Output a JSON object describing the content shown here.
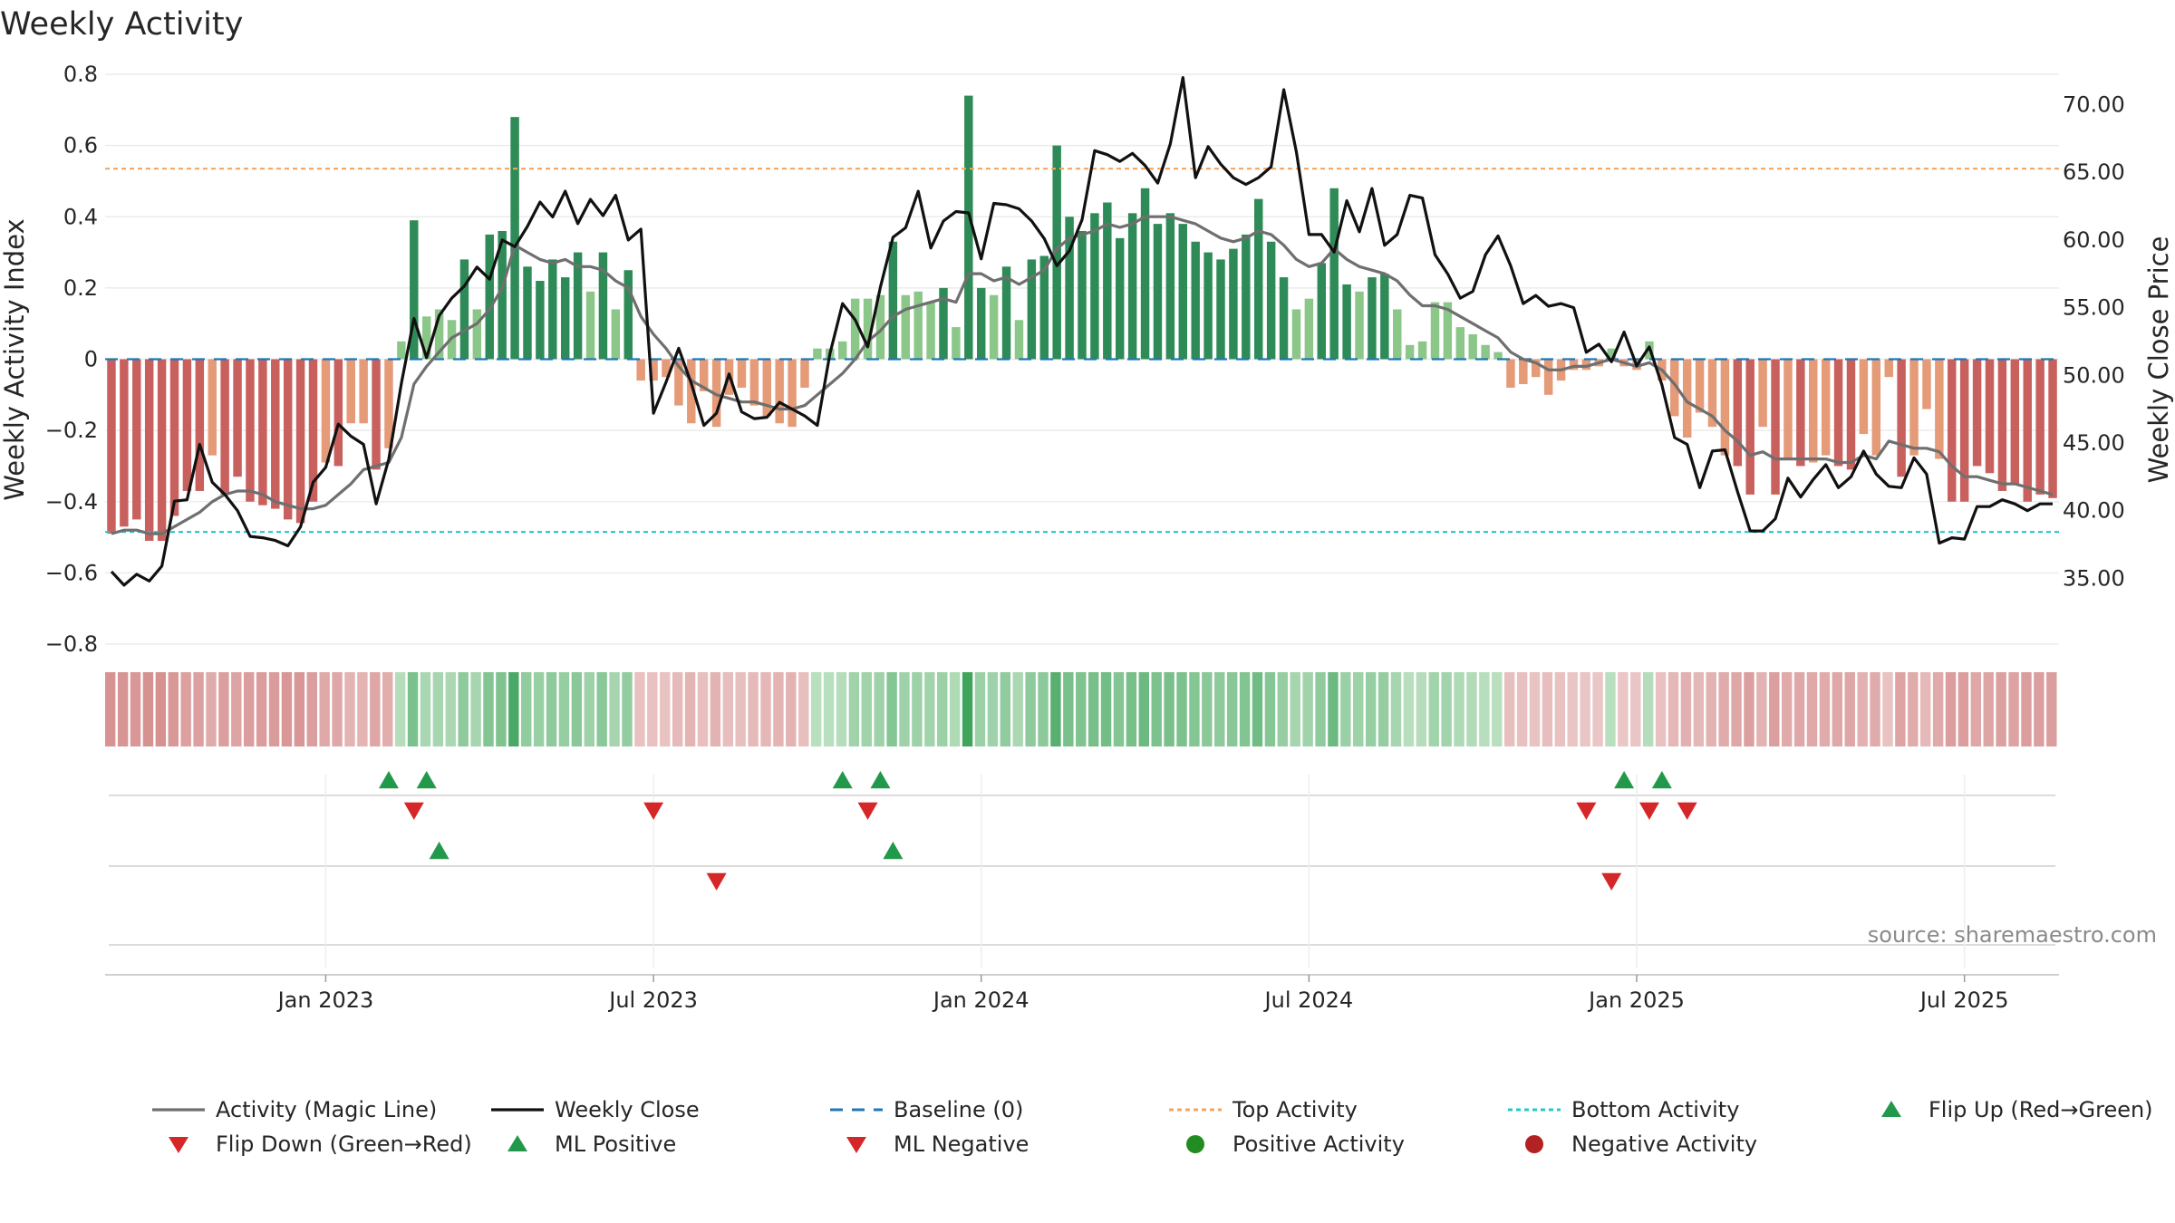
{
  "chart_data": {
    "type": "bar",
    "title": "Weekly Activity",
    "ylabel_left": "Weekly Activity Index",
    "ylabel_right": "Weekly Close Price",
    "source": "source: sharemaestro.com",
    "y_left": {
      "range": [
        -0.8,
        0.8
      ],
      "ticks": [
        0.8,
        0.6,
        0.4,
        0.2,
        0,
        -0.2,
        -0.4,
        -0.6,
        -0.8
      ],
      "tick_labels": [
        "0.8",
        "0.6",
        "0.4",
        "0.2",
        "0",
        "−0.2",
        "−0.4",
        "−0.6",
        "−0.8"
      ]
    },
    "y_right": {
      "range": [
        30.14,
        72.24
      ],
      "ticks": [
        70,
        65,
        60,
        55,
        50,
        45,
        40,
        35
      ],
      "tick_labels": [
        "70.00",
        "65.00",
        "60.00",
        "55.00",
        "50.00",
        "45.00",
        "40.00",
        "35.00"
      ]
    },
    "x_ticks": [
      {
        "week": 17,
        "label": "Jan 2023"
      },
      {
        "week": 43,
        "label": "Jul 2023"
      },
      {
        "week": 69,
        "label": "Jan 2024"
      },
      {
        "week": 95,
        "label": "Jul 2024"
      },
      {
        "week": 121,
        "label": "Jan 2025"
      },
      {
        "week": 147,
        "label": "Jul 2025"
      }
    ],
    "top_activity": 0.535,
    "bottom_activity": -0.485,
    "baseline": 0,
    "colors": {
      "strong_pos": "#2e8b57",
      "weak_pos": "#8cc78a",
      "strong_neg": "#c8605e",
      "weak_neg": "#e59a78",
      "magic_line": "#6f6f6f",
      "close_line": "#111111",
      "baseline": "#1f77b4",
      "top": "#f4a460",
      "bottom": "#22c7cf",
      "up_marker": "#22994a",
      "down_marker": "#d62728",
      "pos_dot": "#228b22",
      "neg_dot": "#b22222"
    },
    "series": [
      {
        "name": "Weekly Activity Index (bars)",
        "values": [
          -0.49,
          -0.47,
          -0.45,
          -0.51,
          -0.51,
          -0.44,
          -0.37,
          -0.37,
          -0.27,
          -0.38,
          -0.33,
          -0.4,
          -0.41,
          -0.42,
          -0.45,
          -0.46,
          -0.4,
          -0.29,
          -0.3,
          -0.18,
          -0.18,
          -0.31,
          -0.25,
          0.05,
          0.39,
          0.12,
          0.14,
          0.11,
          0.28,
          0.14,
          0.35,
          0.36,
          0.68,
          0.26,
          0.22,
          0.28,
          0.23,
          0.3,
          0.19,
          0.3,
          0.14,
          0.25,
          -0.06,
          -0.06,
          -0.05,
          -0.13,
          -0.18,
          -0.09,
          -0.19,
          -0.1,
          -0.08,
          -0.13,
          -0.16,
          -0.18,
          -0.19,
          -0.08,
          0.03,
          0.03,
          0.05,
          0.17,
          0.17,
          0.18,
          0.33,
          0.18,
          0.19,
          0.16,
          0.2,
          0.09,
          0.74,
          0.2,
          0.18,
          0.26,
          0.11,
          0.28,
          0.29,
          0.6,
          0.4,
          0.36,
          0.41,
          0.44,
          0.34,
          0.41,
          0.48,
          0.38,
          0.41,
          0.38,
          0.33,
          0.3,
          0.28,
          0.31,
          0.35,
          0.45,
          0.33,
          0.23,
          0.14,
          0.17,
          0.27,
          0.48,
          0.21,
          0.19,
          0.23,
          0.24,
          0.14,
          0.04,
          0.05,
          0.16,
          0.16,
          0.09,
          0.07,
          0.04,
          0.02,
          -0.08,
          -0.07,
          -0.05,
          -0.1,
          -0.06,
          -0.03,
          -0.03,
          -0.02,
          0.03,
          -0.02,
          -0.03,
          0.05,
          -0.06,
          -0.16,
          -0.22,
          -0.15,
          -0.19,
          -0.27,
          -0.3,
          -0.38,
          -0.19,
          -0.38,
          -0.28,
          -0.3,
          -0.29,
          -0.27,
          -0.3,
          -0.31,
          -0.21,
          -0.27,
          -0.05,
          -0.33,
          -0.27,
          -0.14,
          -0.28,
          -0.4,
          -0.4,
          -0.3,
          -0.32,
          -0.37,
          -0.35,
          -0.4,
          -0.38,
          -0.39
        ]
      },
      {
        "name": "Activity (Magic Line)",
        "values": [
          -0.49,
          -0.48,
          -0.48,
          -0.49,
          -0.49,
          -0.47,
          -0.45,
          -0.43,
          -0.4,
          -0.38,
          -0.37,
          -0.37,
          -0.38,
          -0.4,
          -0.41,
          -0.42,
          -0.42,
          -0.41,
          -0.38,
          -0.35,
          -0.31,
          -0.3,
          -0.29,
          -0.22,
          -0.07,
          -0.02,
          0.02,
          0.06,
          0.08,
          0.1,
          0.14,
          0.2,
          0.32,
          0.3,
          0.28,
          0.27,
          0.28,
          0.26,
          0.26,
          0.25,
          0.22,
          0.2,
          0.12,
          0.07,
          0.03,
          -0.02,
          -0.06,
          -0.08,
          -0.1,
          -0.11,
          -0.12,
          -0.12,
          -0.13,
          -0.14,
          -0.14,
          -0.13,
          -0.1,
          -0.07,
          -0.04,
          0.0,
          0.05,
          0.08,
          0.12,
          0.14,
          0.15,
          0.16,
          0.17,
          0.16,
          0.24,
          0.24,
          0.22,
          0.23,
          0.21,
          0.23,
          0.25,
          0.31,
          0.34,
          0.35,
          0.36,
          0.38,
          0.37,
          0.38,
          0.4,
          0.4,
          0.4,
          0.39,
          0.38,
          0.36,
          0.34,
          0.33,
          0.34,
          0.36,
          0.35,
          0.32,
          0.28,
          0.26,
          0.27,
          0.31,
          0.28,
          0.26,
          0.25,
          0.24,
          0.22,
          0.18,
          0.15,
          0.15,
          0.14,
          0.12,
          0.1,
          0.08,
          0.06,
          0.02,
          0.0,
          -0.01,
          -0.03,
          -0.03,
          -0.02,
          -0.02,
          -0.01,
          0.0,
          -0.01,
          -0.02,
          -0.01,
          -0.03,
          -0.07,
          -0.12,
          -0.14,
          -0.16,
          -0.2,
          -0.23,
          -0.27,
          -0.26,
          -0.28,
          -0.28,
          -0.28,
          -0.28,
          -0.28,
          -0.29,
          -0.29,
          -0.27,
          -0.28,
          -0.23,
          -0.24,
          -0.25,
          -0.25,
          -0.26,
          -0.3,
          -0.33,
          -0.33,
          -0.34,
          -0.35,
          -0.35,
          -0.36,
          -0.37,
          -0.38
        ]
      },
      {
        "name": "Weekly Close",
        "values": [
          35.5,
          34.5,
          35.3,
          34.8,
          35.9,
          40.7,
          40.8,
          44.9,
          42.1,
          41.2,
          40.0,
          38.1,
          38.0,
          37.8,
          37.4,
          38.8,
          42.1,
          43.2,
          46.4,
          45.5,
          44.9,
          40.5,
          43.8,
          49.4,
          54.2,
          51.3,
          54.4,
          55.7,
          56.6,
          58.0,
          57.1,
          60.0,
          59.5,
          61.0,
          62.8,
          61.7,
          63.6,
          61.2,
          63.0,
          61.8,
          63.3,
          60.0,
          60.8,
          47.2,
          49.5,
          52.0,
          49.4,
          46.3,
          47.2,
          50.1,
          47.3,
          46.8,
          46.9,
          48.0,
          47.5,
          47.0,
          46.3,
          51.6,
          55.3,
          54.1,
          52.1,
          56.5,
          60.2,
          60.9,
          63.6,
          59.4,
          61.4,
          62.1,
          62.0,
          58.6,
          62.7,
          62.6,
          62.3,
          61.4,
          60.1,
          58.1,
          59.2,
          61.5,
          66.6,
          66.3,
          65.8,
          66.4,
          65.5,
          64.2,
          67.1,
          72.0,
          64.6,
          66.9,
          65.6,
          64.6,
          64.1,
          64.6,
          65.4,
          71.1,
          66.5,
          60.4,
          60.4,
          59.1,
          62.9,
          60.6,
          63.8,
          59.6,
          60.4,
          63.3,
          63.1,
          58.9,
          57.5,
          55.7,
          56.2,
          58.9,
          60.3,
          58.1,
          55.3,
          55.9,
          55.1,
          55.3,
          55.0,
          51.7,
          52.3,
          51.0,
          53.2,
          50.7,
          52.1,
          49.3,
          45.4,
          44.9,
          41.7,
          44.4,
          44.5,
          41.4,
          38.5,
          38.5,
          39.4,
          42.4,
          41.0,
          42.3,
          43.4,
          41.7,
          42.5,
          44.4,
          42.7,
          41.8,
          41.7,
          43.9,
          42.7,
          37.6,
          38.0,
          37.9,
          40.3,
          40.3,
          40.8,
          40.5,
          40.0,
          40.5,
          40.5
        ]
      }
    ],
    "ml_flip_up_weeks": [
      22,
      25,
      58,
      61,
      120,
      123
    ],
    "ml_flip_down_weeks": [
      24,
      43,
      60,
      117,
      122,
      125
    ],
    "ml_positive_weeks": [
      26,
      62
    ],
    "ml_negative_weeks": [
      48,
      119
    ],
    "legend": [
      {
        "key": "magic",
        "label": "Activity (Magic Line)"
      },
      {
        "key": "close",
        "label": "Weekly Close"
      },
      {
        "key": "baseline",
        "label": "Baseline (0)"
      },
      {
        "key": "top",
        "label": "Top Activity"
      },
      {
        "key": "bottom",
        "label": "Bottom Activity"
      },
      {
        "key": "flip_up",
        "label": "Flip Up (Red→Green)"
      },
      {
        "key": "flip_down",
        "label": "Flip Down (Green→Red)"
      },
      {
        "key": "ml_pos",
        "label": "ML Positive"
      },
      {
        "key": "ml_neg",
        "label": "ML Negative"
      },
      {
        "key": "pos_act",
        "label": "Positive Activity"
      },
      {
        "key": "neg_act",
        "label": "Negative Activity"
      }
    ]
  }
}
